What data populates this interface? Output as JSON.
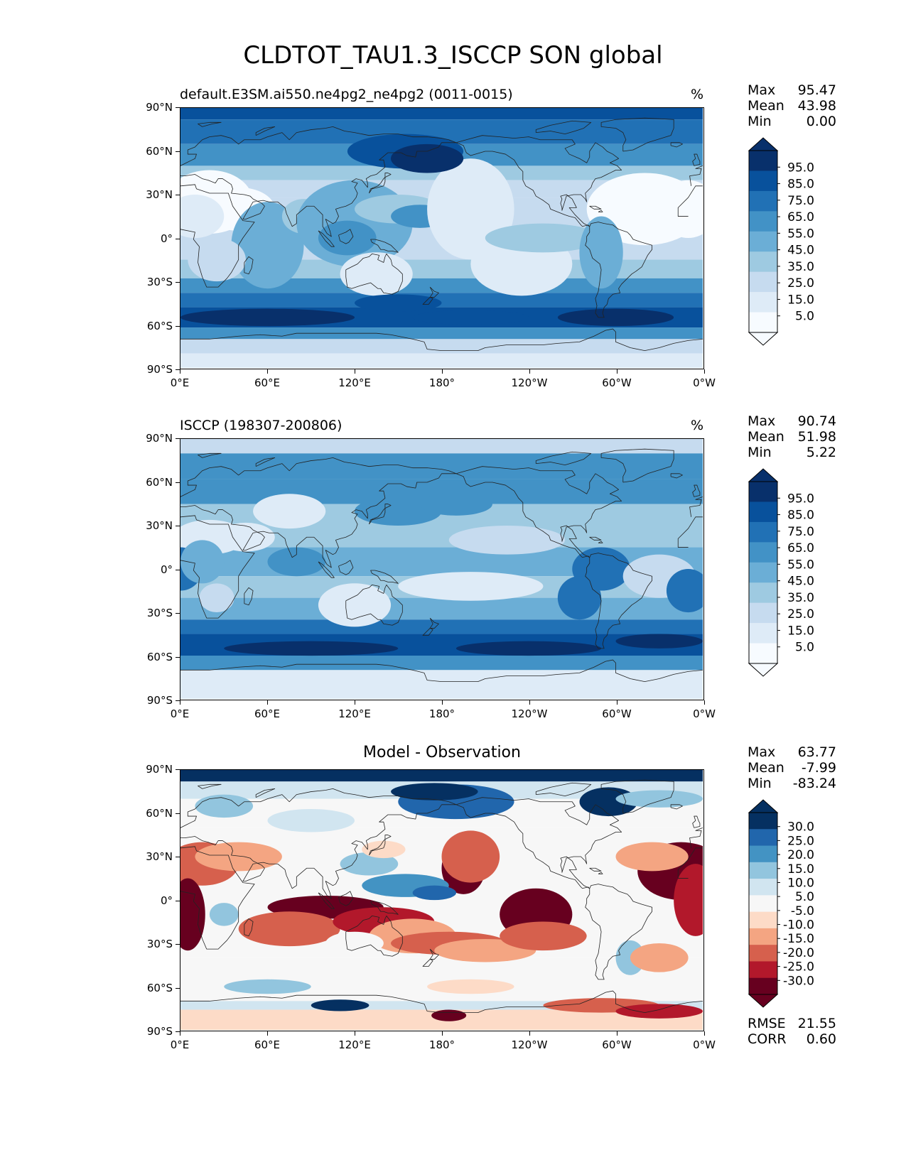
{
  "figure_title": "CLDTOT_TAU1.3_ISCCP SON global",
  "x_ticks": [
    "0°E",
    "60°E",
    "120°E",
    "180°",
    "120°W",
    "60°W",
    "0°W"
  ],
  "y_ticks": [
    "90°N",
    "60°N",
    "30°N",
    "0°",
    "30°S",
    "60°S",
    "90°S"
  ],
  "panels": [
    {
      "title": "default.E3SM.ai550.ne4pg2_ne4pg2 (0011-0015)",
      "units": "%",
      "stats": [
        {
          "label": "Max",
          "value": "95.47"
        },
        {
          "label": "Mean",
          "value": "43.98"
        },
        {
          "label": "Min",
          "value": "0.00"
        }
      ],
      "colorbar_labels": [
        "95.0",
        "85.0",
        "75.0",
        "65.0",
        "55.0",
        "45.0",
        "35.0",
        "25.0",
        "15.0",
        "5.0"
      ]
    },
    {
      "title": "ISCCP (198307-200806)",
      "units": "%",
      "stats": [
        {
          "label": "Max",
          "value": "90.74"
        },
        {
          "label": "Mean",
          "value": "51.98"
        },
        {
          "label": "Min",
          "value": "5.22"
        }
      ],
      "colorbar_labels": [
        "95.0",
        "85.0",
        "75.0",
        "65.0",
        "55.0",
        "45.0",
        "35.0",
        "25.0",
        "15.0",
        "5.0"
      ]
    },
    {
      "title": "Model - Observation",
      "units": "",
      "stats": [
        {
          "label": "Max",
          "value": "63.77"
        },
        {
          "label": "Mean",
          "value": "-7.99"
        },
        {
          "label": "Min",
          "value": "-83.24"
        }
      ],
      "colorbar_labels": [
        "30.0",
        "25.0",
        "20.0",
        "15.0",
        "10.0",
        "5.0",
        "-5.0",
        "-10.0",
        "-15.0",
        "-20.0",
        "-25.0",
        "-30.0"
      ],
      "metrics": [
        {
          "label": "RMSE",
          "value": "21.55"
        },
        {
          "label": "CORR",
          "value": "0.60"
        }
      ]
    }
  ],
  "colors": {
    "blues": [
      "#f7fbff",
      "#deebf7",
      "#c6dbef",
      "#9ecae1",
      "#6baed6",
      "#4292c6",
      "#2171b5",
      "#08519c",
      "#08306b"
    ],
    "rdbu": [
      "#67001f",
      "#b2182b",
      "#d6604d",
      "#f4a582",
      "#fddbc7",
      "#f7f7f7",
      "#d1e5f0",
      "#92c5de",
      "#4393c3",
      "#2166ac",
      "#053061"
    ]
  }
}
